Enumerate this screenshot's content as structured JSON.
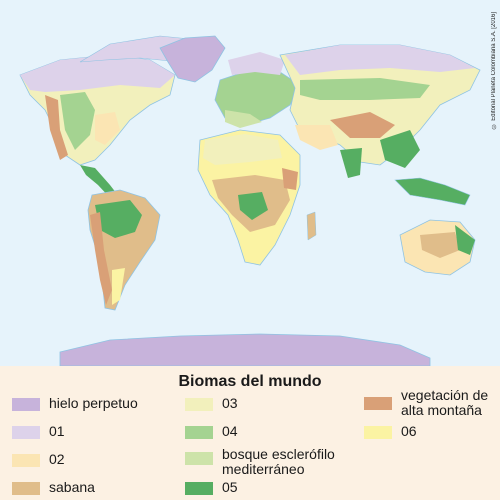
{
  "map": {
    "title": "Biomas del mundo",
    "copyright": "© Editorial Planeta Colombiana S.A. [2016]"
  },
  "legend": {
    "items": [
      {
        "label": "hielo perpetuo",
        "color": "#c7b3db"
      },
      {
        "label": "01",
        "color": "#ddd2ea"
      },
      {
        "label": "02",
        "color": "#fbe5b3"
      },
      {
        "label": "sabana",
        "color": "#e0bd8a"
      },
      {
        "label": "03",
        "color": "#f2f0bc"
      },
      {
        "label": "04",
        "color": "#a4d391"
      },
      {
        "label": "bosque esclerófilo mediterráneo",
        "label_line1": "bosque esclerófilo",
        "label_line2": "mediterráneo",
        "color": "#cde3a9"
      },
      {
        "label": "05",
        "color": "#56ae62"
      },
      {
        "label": "vegetación de alta montaña",
        "label_line1": "vegetación de",
        "label_line2": "alta montaña",
        "color": "#d9a077"
      },
      {
        "label": "06",
        "color": "#fbf3a3"
      }
    ]
  },
  "colors": {
    "ocean": "#e6f3fb",
    "water": "#8fc3e3",
    "legend_bg": "#fcf1e3"
  }
}
